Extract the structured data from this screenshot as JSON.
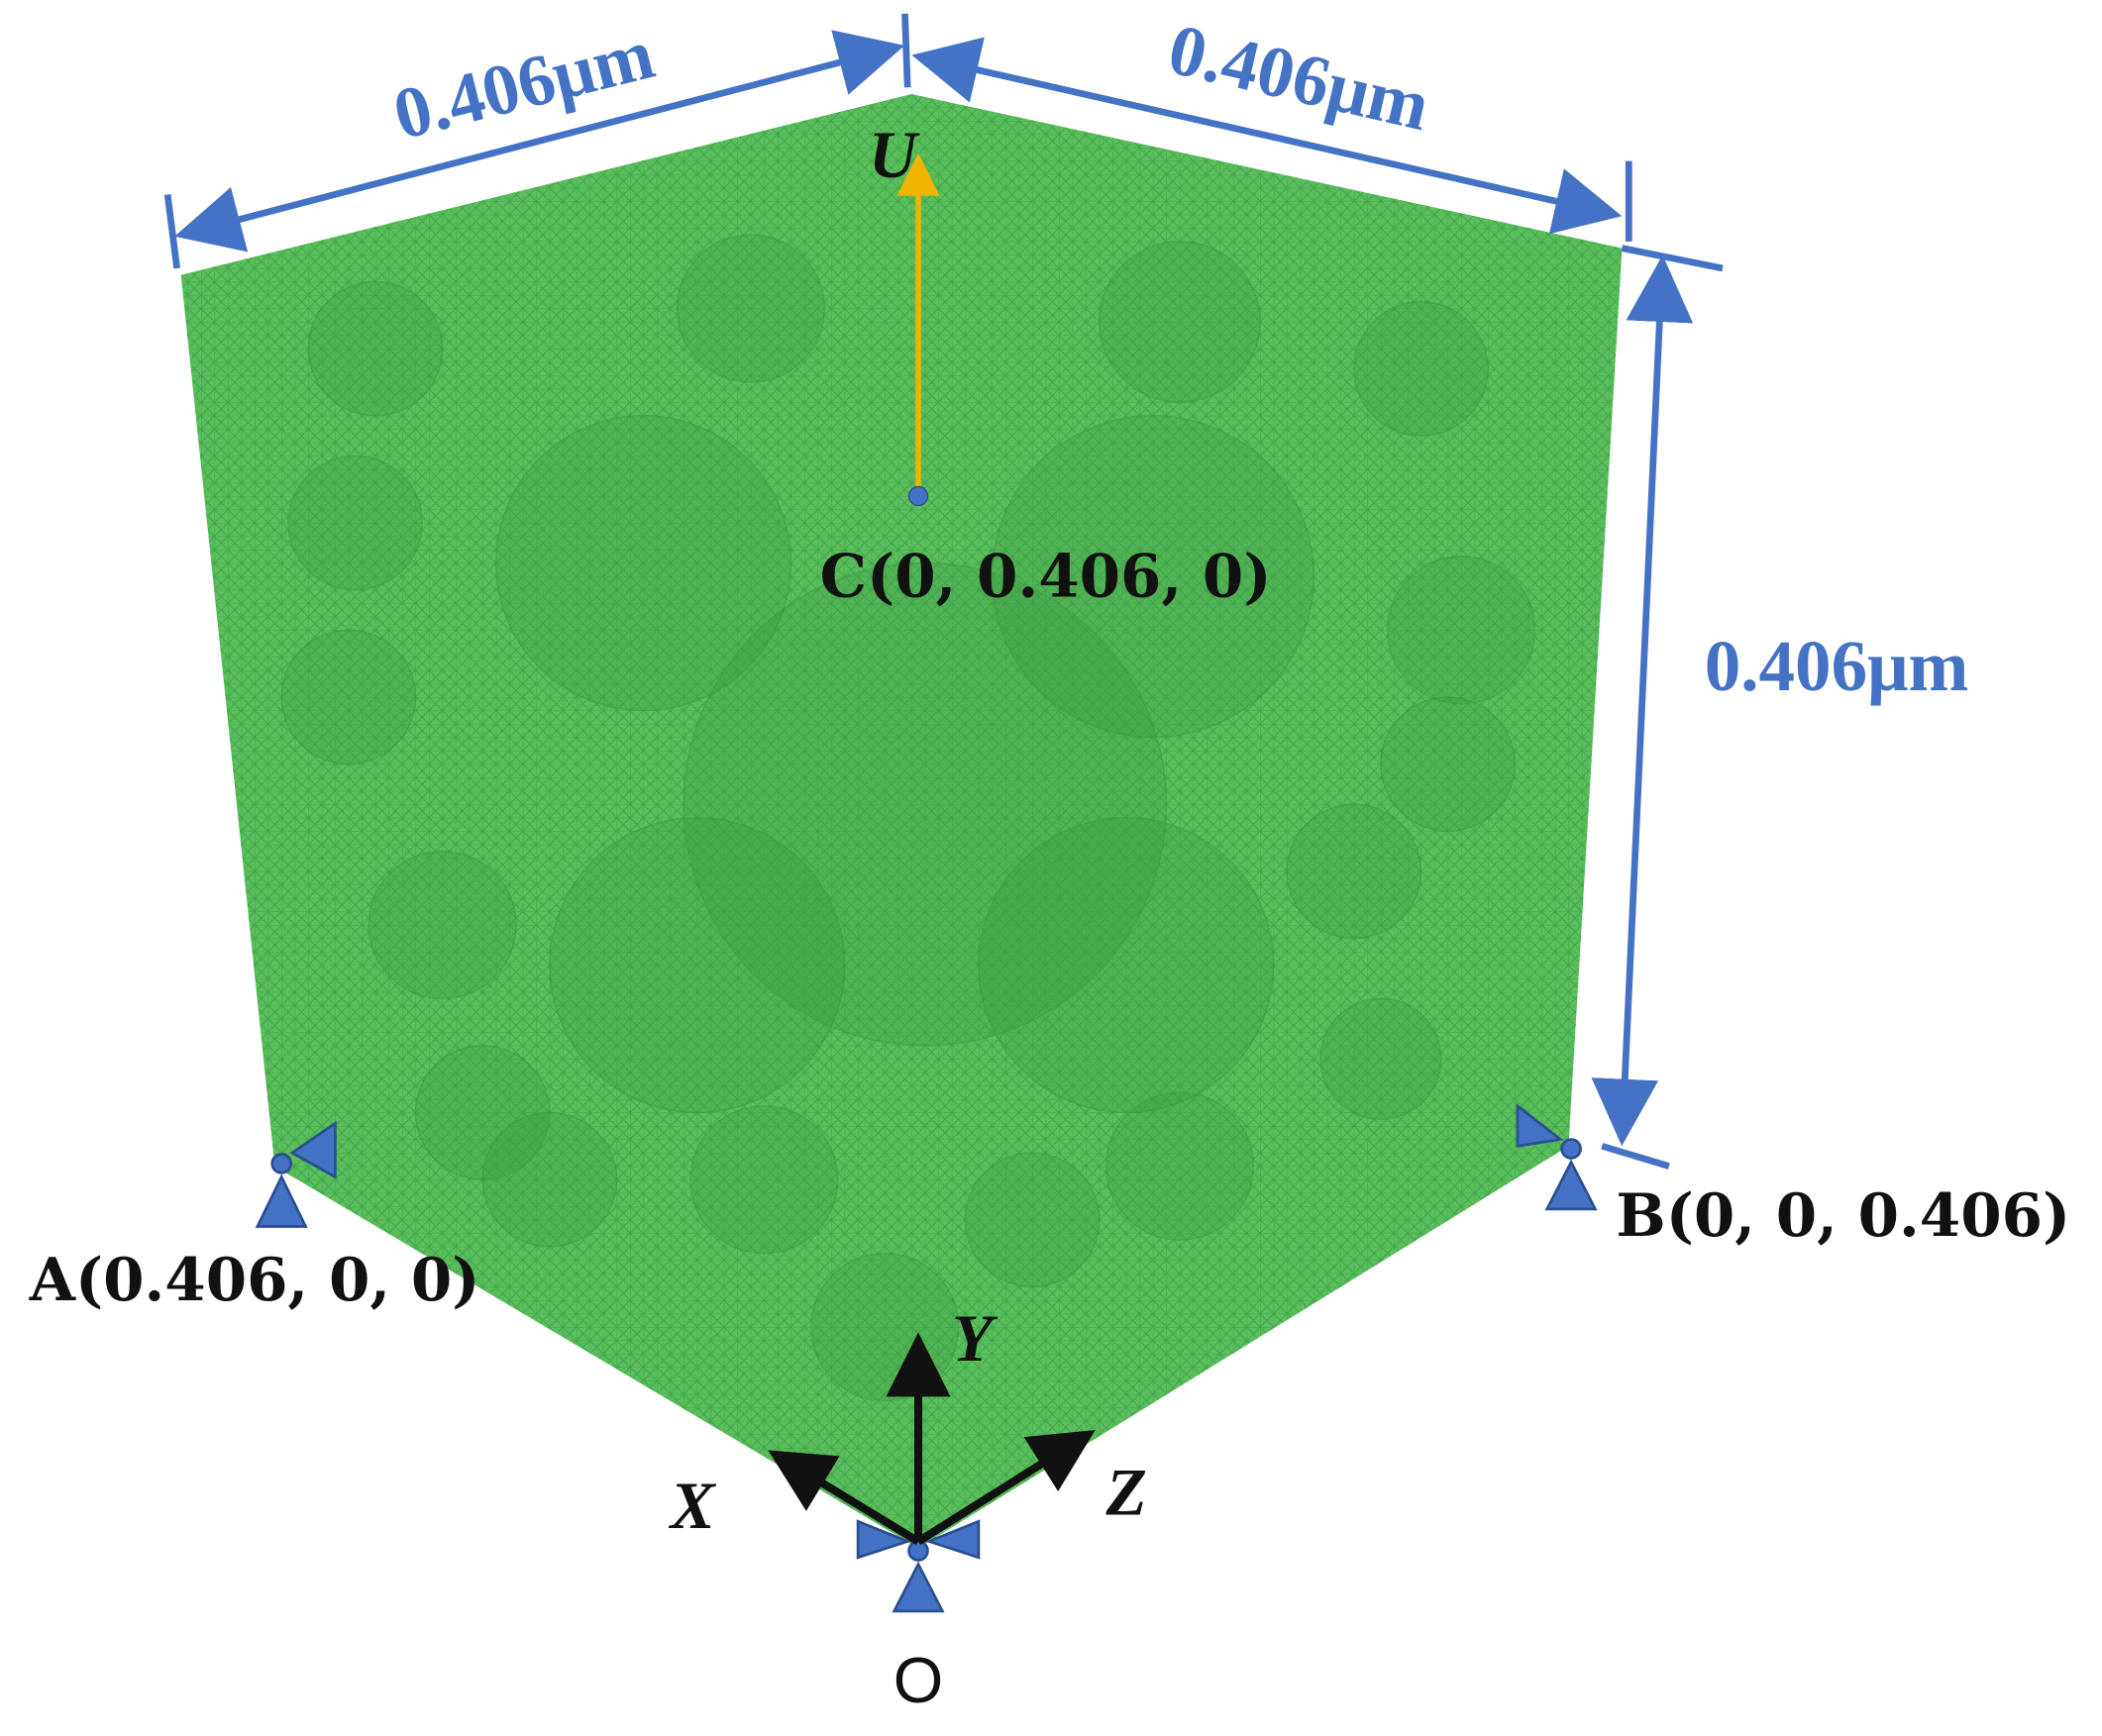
{
  "dimensions": {
    "top_left": "0.406μm",
    "top_right": "0.406μm",
    "height": "0.406μm"
  },
  "load": {
    "label": "U"
  },
  "points": {
    "C": "C(0, 0.406, 0)",
    "A": "A(0.406, 0, 0)",
    "B": "B(0, 0, 0.406)",
    "O": "O"
  },
  "axes": {
    "x": "X",
    "y": "Y",
    "z": "Z"
  }
}
